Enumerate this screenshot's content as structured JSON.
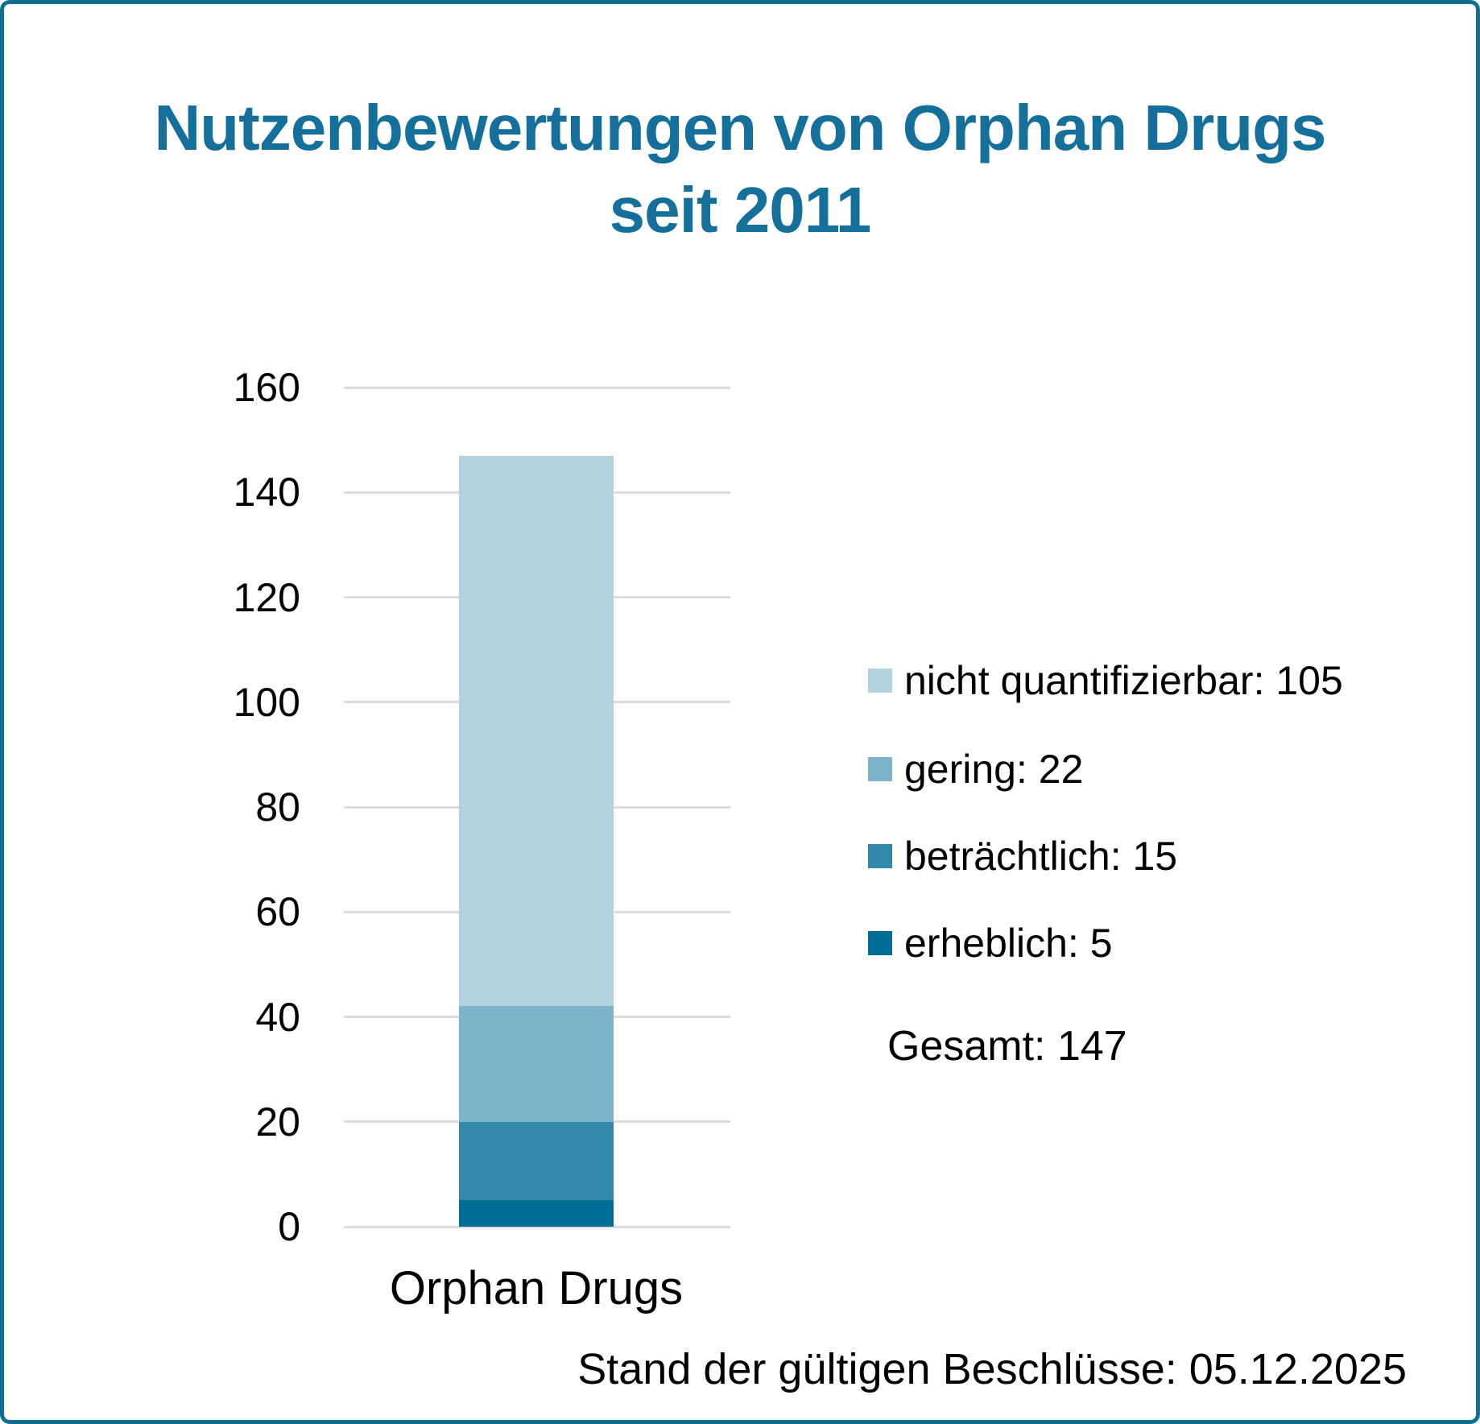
{
  "title": {
    "line1": "Nutzenbewertungen von Orphan Drugs",
    "line2": "seit 2011"
  },
  "chart_data": {
    "type": "bar",
    "stacked": true,
    "title": "Nutzenbewertungen von Orphan Drugs seit 2011",
    "categories": [
      "Orphan Drugs"
    ],
    "series": [
      {
        "name": "nicht quantifizierbar",
        "value": 105,
        "color": "#b2d3de"
      },
      {
        "name": "gering",
        "value": 22,
        "color": "#7eb4cb"
      },
      {
        "name": "beträchtlich",
        "value": 15,
        "color": "#3289aa"
      },
      {
        "name": "erheblich",
        "value": 5,
        "color": "#006e94"
      }
    ],
    "legend_separator": ": ",
    "total_label": "Gesamt",
    "total_value": 147,
    "xlabel": "",
    "ylabel": "",
    "ylim": [
      0,
      160
    ],
    "yticks": [
      0,
      20,
      40,
      60,
      80,
      100,
      120,
      140,
      160
    ],
    "grid": true,
    "legend_position": "right"
  },
  "footer": {
    "note": "Stand der gültigen Beschlüsse: 05.12.2025"
  },
  "colors": {
    "accent": "#156f9b",
    "border": "#116e93",
    "grid": "#dcdcdc",
    "text": "#000000"
  }
}
